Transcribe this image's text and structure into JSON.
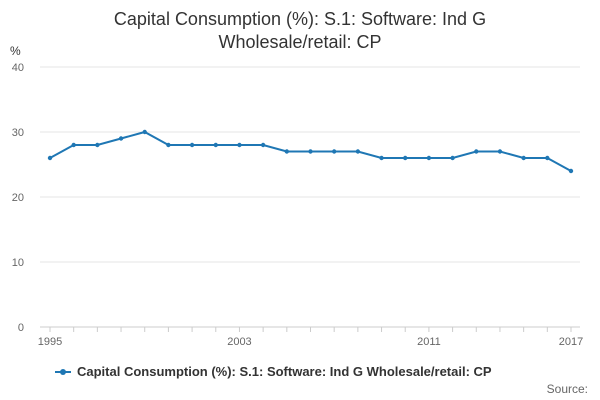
{
  "chart_data": {
    "type": "line",
    "title_line1": "Capital Consumption (%): S.1: Software: Ind G",
    "title_line2": "Wholesale/retail: CP",
    "ylabel": "%",
    "xlabel": "",
    "ylim": [
      0,
      40
    ],
    "yticks": [
      0,
      10,
      20,
      30,
      40
    ],
    "xlim": [
      1995,
      2017
    ],
    "xtick_labels": [
      "1995",
      "2003",
      "2011",
      "2017"
    ],
    "x": [
      1995,
      1996,
      1997,
      1998,
      1999,
      2000,
      2001,
      2002,
      2003,
      2004,
      2005,
      2006,
      2007,
      2008,
      2009,
      2010,
      2011,
      2012,
      2013,
      2014,
      2015,
      2016,
      2017
    ],
    "series": [
      {
        "name": "Capital Consumption (%): S.1: Software: Ind G Wholesale/retail: CP",
        "color": "#1f77b4",
        "values": [
          26,
          28,
          28,
          29,
          30,
          28,
          28,
          28,
          28,
          28,
          27,
          27,
          27,
          27,
          26,
          26,
          26,
          26,
          27,
          27,
          26,
          26,
          24
        ]
      }
    ],
    "legend_position": "bottom",
    "grid": true,
    "source_label": "Source:"
  }
}
